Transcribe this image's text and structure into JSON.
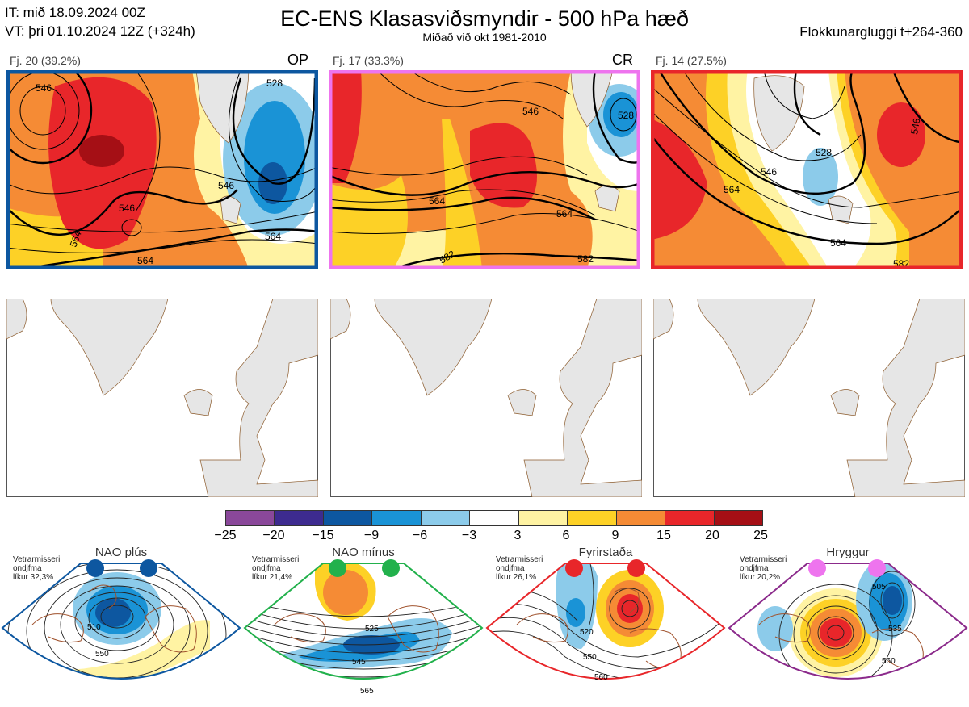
{
  "header": {
    "init": "IT: mið 18.09.2024 00Z",
    "valid": "VT: þri 01.10.2024 12Z  (+324h)",
    "title": "EC-ENS Klasasviðsmyndir - 500 hPa hæð",
    "subtitle": "Miðað við okt 1981-2010",
    "window": "Flokkunargluggi t+264-360"
  },
  "clusters": [
    {
      "caption": "Fj. 20 (39.2%)",
      "tag": "OP",
      "border": "#0d57a0",
      "contour_labels": [
        "546",
        "546",
        "546",
        "564",
        "564",
        "564",
        "528"
      ]
    },
    {
      "caption": "Fj. 17 (33.3%)",
      "tag": "CR",
      "border": "#ee74ee",
      "contour_labels": [
        "546",
        "564",
        "564",
        "582",
        "582",
        "528"
      ]
    },
    {
      "caption": "Fj. 14 (27.5%)",
      "tag": "",
      "border": "#e8262a",
      "contour_labels": [
        "546",
        "546",
        "564",
        "528",
        "564",
        "582"
      ]
    }
  ],
  "colorbar": {
    "ticks": [
      "−25",
      "−20",
      "−15",
      "−9",
      "−6",
      "−3",
      "3",
      "6",
      "9",
      "15",
      "20",
      "25"
    ],
    "colors": [
      "#8a489a",
      "#3d2b8f",
      "#0d57a0",
      "#1a93d6",
      "#8ccbea",
      "#ffffff",
      "#fff3a3",
      "#fdd126",
      "#f58b35",
      "#e8262a",
      "#a50f15"
    ]
  },
  "regimes": [
    {
      "title": "NAO plús",
      "note": [
        "Vetrarmisseri",
        "ondjfma",
        "líkur 32,3%"
      ],
      "dot_color": "#0d57a0",
      "frame": "#0d57a0",
      "labels": [
        "510",
        "550"
      ]
    },
    {
      "title": "NAO mínus",
      "note": [
        "Vetrarmisseri",
        "ondjfma",
        "líkur 21,4%"
      ],
      "dot_color": "#22b14c",
      "frame": "#22b14c",
      "labels": [
        "525",
        "545",
        "565"
      ]
    },
    {
      "title": "Fyrirstaða",
      "note": [
        "Vetrarmisseri",
        "ondjfma",
        "líkur 26,1%"
      ],
      "dot_color": "#e8262a",
      "frame": "#e8262a",
      "labels": [
        "520",
        "550",
        "560"
      ]
    },
    {
      "title": "Hryggur",
      "note": [
        "Vetrarmisseri",
        "ondjfma",
        "líkur 20,2%"
      ],
      "dot_color": "#ee74ee",
      "frame": "#8b2a8b",
      "labels": [
        "505",
        "535",
        "560"
      ]
    }
  ]
}
